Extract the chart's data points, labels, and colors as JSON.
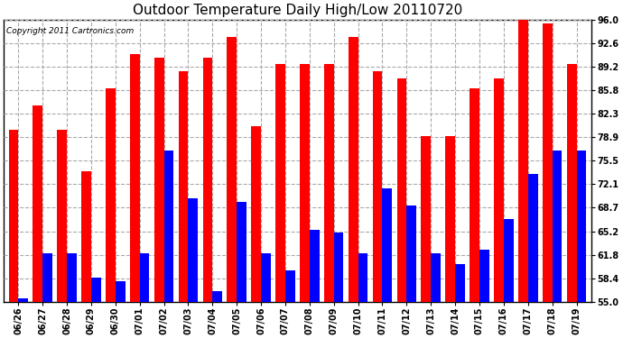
{
  "title": "Outdoor Temperature Daily High/Low 20110720",
  "copyright_text": "Copyright 2011 Cartronics.com",
  "dates": [
    "06/26",
    "06/27",
    "06/28",
    "06/29",
    "06/30",
    "07/01",
    "07/02",
    "07/03",
    "07/04",
    "07/05",
    "07/06",
    "07/07",
    "07/08",
    "07/09",
    "07/10",
    "07/11",
    "07/12",
    "07/13",
    "07/14",
    "07/15",
    "07/16",
    "07/17",
    "07/18",
    "07/19"
  ],
  "highs": [
    80.0,
    83.5,
    80.0,
    74.0,
    86.0,
    91.0,
    90.5,
    88.5,
    90.5,
    93.5,
    80.5,
    89.5,
    89.5,
    89.5,
    93.5,
    88.5,
    87.5,
    79.0,
    79.0,
    86.0,
    87.5,
    96.0,
    95.5,
    89.5
  ],
  "lows": [
    55.5,
    62.0,
    62.0,
    58.5,
    58.0,
    62.0,
    77.0,
    70.0,
    56.5,
    69.5,
    62.0,
    59.5,
    65.5,
    65.0,
    62.0,
    71.5,
    69.0,
    62.0,
    60.5,
    62.5,
    67.0,
    73.5,
    77.0,
    77.0
  ],
  "yticks": [
    55.0,
    58.4,
    61.8,
    65.2,
    68.7,
    72.1,
    75.5,
    78.9,
    82.3,
    85.8,
    89.2,
    92.6,
    96.0
  ],
  "ylim_min": 55.0,
  "ylim_max": 96.0,
  "bar_color_high": "#ff0000",
  "bar_color_low": "#0000ff",
  "background_color": "#ffffff",
  "grid_color": "#aaaaaa",
  "title_fontsize": 11,
  "tick_fontsize": 7,
  "copyright_fontsize": 6.5
}
